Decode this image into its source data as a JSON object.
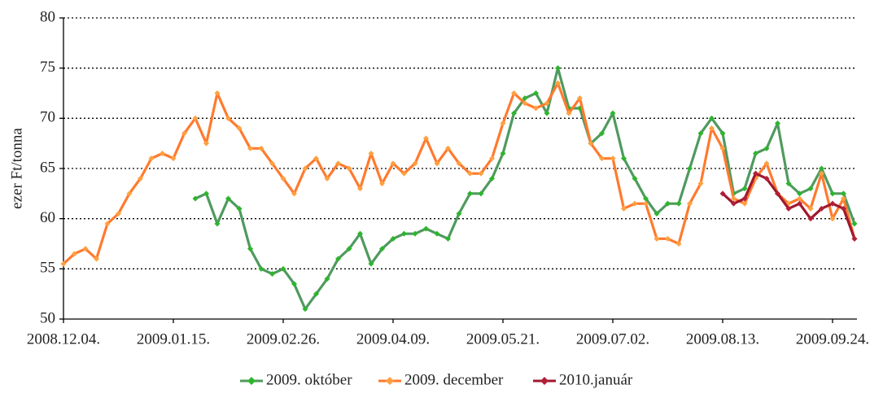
{
  "chart_data": {
    "type": "line",
    "y_label": "ezer Ft/tonna",
    "categories": [
      "2008.12.04.",
      null,
      null,
      null,
      null,
      null,
      null,
      null,
      null,
      null,
      "2009.01.15.",
      null,
      null,
      null,
      null,
      null,
      null,
      null,
      null,
      null,
      "2009.02.26.",
      null,
      null,
      null,
      null,
      null,
      null,
      null,
      null,
      null,
      "2009.04.09.",
      null,
      null,
      null,
      null,
      null,
      null,
      null,
      null,
      null,
      "2009.05.21.",
      null,
      null,
      null,
      null,
      null,
      null,
      null,
      null,
      null,
      "2009.07.02.",
      null,
      null,
      null,
      null,
      null,
      null,
      null,
      null,
      null,
      "2009.08.13.",
      null,
      null,
      null,
      null,
      null,
      null,
      null,
      null,
      null,
      "2009.09.24.",
      null,
      null
    ],
    "series": [
      {
        "name": "2009. október",
        "color": "#4f9a5e",
        "marker_color": "#2db52d",
        "values": [
          null,
          null,
          null,
          null,
          null,
          null,
          null,
          null,
          null,
          null,
          null,
          null,
          62,
          62.5,
          59.5,
          62,
          61,
          57,
          55,
          54.5,
          55,
          53.5,
          51,
          52.5,
          54,
          56,
          57,
          58.5,
          55.5,
          57,
          58,
          58.5,
          58.5,
          59,
          58.5,
          58,
          60.5,
          62.5,
          62.5,
          64,
          66.5,
          70.5,
          72,
          72.5,
          70.5,
          75,
          71,
          71,
          67.5,
          68.5,
          70.5,
          66,
          64,
          62,
          60.5,
          61.5,
          61.5,
          65,
          68.5,
          70,
          68.5,
          62.5,
          63,
          66.5,
          67,
          69.5,
          63.5,
          62.5,
          63,
          65,
          62.5,
          62.5,
          59.5
        ]
      },
      {
        "name": "2009. december",
        "color": "#ff7a2e",
        "marker_color": "#ffa040",
        "values": [
          55.5,
          56.5,
          57,
          56,
          59.5,
          60.5,
          62.5,
          64,
          66,
          66.5,
          66,
          68.5,
          70,
          67.5,
          72.5,
          70,
          69,
          67,
          67,
          65.5,
          64,
          62.5,
          65,
          66,
          64,
          65.5,
          65,
          63,
          66.5,
          63.5,
          65.5,
          64.5,
          65.5,
          68,
          65.5,
          67,
          65.5,
          64.5,
          64.5,
          66,
          69.5,
          72.5,
          71.5,
          71,
          71.5,
          73.5,
          70.5,
          72,
          67.5,
          66,
          66,
          61,
          61.5,
          61.5,
          58,
          58,
          57.5,
          61.5,
          63.5,
          69,
          67,
          62,
          61.5,
          64,
          65.5,
          62.5,
          61.5,
          62,
          61,
          64.5,
          60,
          62,
          58
        ]
      },
      {
        "name": "2010.január",
        "color": "#a0182e",
        "marker_color": "#b0203a",
        "values": [
          null,
          null,
          null,
          null,
          null,
          null,
          null,
          null,
          null,
          null,
          null,
          null,
          null,
          null,
          null,
          null,
          null,
          null,
          null,
          null,
          null,
          null,
          null,
          null,
          null,
          null,
          null,
          null,
          null,
          null,
          null,
          null,
          null,
          null,
          null,
          null,
          null,
          null,
          null,
          null,
          null,
          null,
          null,
          null,
          null,
          null,
          null,
          null,
          null,
          null,
          null,
          null,
          null,
          null,
          null,
          null,
          null,
          null,
          null,
          null,
          62.5,
          61.5,
          62,
          64.5,
          64,
          62.5,
          61,
          61.5,
          60,
          61,
          61.5,
          61,
          58
        ]
      }
    ],
    "ylim": [
      50,
      80
    ],
    "yticks": [
      50,
      55,
      60,
      65,
      70,
      75,
      80
    ],
    "grid": true,
    "legend": "bottom"
  }
}
